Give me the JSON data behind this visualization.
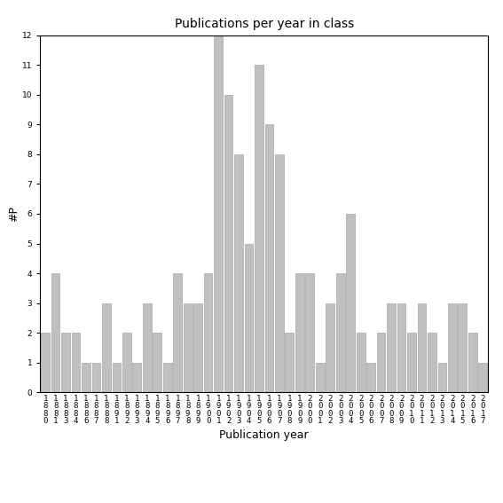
{
  "years": [
    1880,
    1881,
    1883,
    1884,
    1886,
    1887,
    1888,
    1891,
    1892,
    1893,
    1894,
    1895,
    1896,
    1897,
    1898,
    1899,
    1900,
    1901,
    1902,
    1903,
    1904,
    1905,
    1906,
    1907,
    1908,
    1909,
    2000,
    2001,
    2002,
    2003,
    2004,
    2005,
    2006,
    2007,
    2008,
    2009,
    2010,
    2011,
    2012,
    2013,
    2014,
    2015,
    2016,
    2017
  ],
  "values": [
    2,
    4,
    2,
    2,
    1,
    1,
    3,
    1,
    2,
    1,
    3,
    2,
    1,
    4,
    3,
    3,
    4,
    12,
    10,
    8,
    5,
    11,
    9,
    8,
    2,
    4,
    4,
    1,
    3,
    4,
    6,
    2,
    1,
    2,
    3,
    3,
    2,
    3,
    2,
    1,
    3,
    3,
    2,
    1
  ],
  "bar_color": "#c0c0c0",
  "bar_edgecolor": "#999999",
  "title": "Publications per year in class",
  "xlabel": "Publication year",
  "ylabel": "#P",
  "ylim": [
    0,
    12
  ],
  "yticks": [
    0,
    1,
    2,
    3,
    4,
    5,
    6,
    7,
    8,
    9,
    10,
    11,
    12
  ],
  "bg_color": "#ffffff",
  "tick_label_fontsize": 6.5,
  "axis_label_fontsize": 9,
  "title_fontsize": 10
}
